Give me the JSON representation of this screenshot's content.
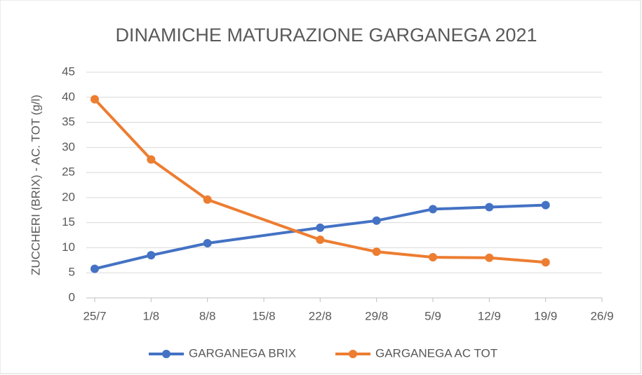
{
  "chart_data": {
    "type": "line",
    "title": "DINAMICHE MATURAZIONE GARGANEGA 2021",
    "y_label": "ZUCCHERI (BRIX) - AC. TOT (g/l)",
    "x": [
      "25/7",
      "1/8",
      "8/8",
      "22/8",
      "29/8",
      "5/9",
      "12/9",
      "19/9"
    ],
    "series": [
      {
        "name": "GARGANEGA BRIX",
        "color": "#4472c4",
        "values": [
          5.8,
          8.5,
          10.9,
          14.0,
          15.4,
          17.7,
          18.1,
          18.5
        ]
      },
      {
        "name": "GARGANEGA AC TOT",
        "color": "#ed7d31",
        "values": [
          39.6,
          27.6,
          19.6,
          11.6,
          9.2,
          8.1,
          8.0,
          7.1
        ]
      }
    ],
    "xlim": [
      "25/7",
      "26/9"
    ],
    "xticks": [
      "25/7",
      "1/8",
      "8/8",
      "15/8",
      "22/8",
      "29/8",
      "5/9",
      "12/9",
      "19/9",
      "26/9"
    ],
    "ylim": [
      0,
      45
    ],
    "yticks": [
      0,
      5,
      10,
      15,
      20,
      25,
      30,
      35,
      40,
      45
    ],
    "grid": true,
    "legend": "bottom"
  }
}
